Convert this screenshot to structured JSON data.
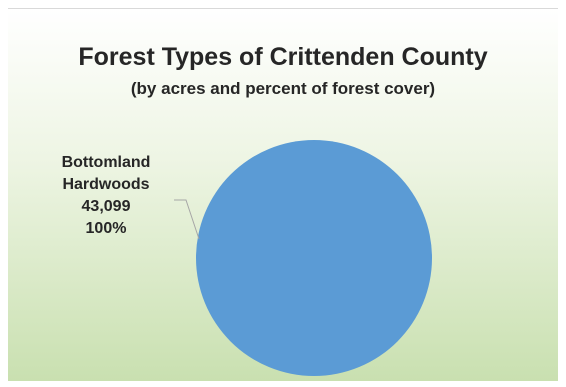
{
  "chart_data": {
    "type": "pie",
    "title": "Forest Types of Crittenden County",
    "subtitle": "(by acres and percent of forest cover)",
    "categories": [
      "Bottomland Hardwoods"
    ],
    "values": [
      43099
    ],
    "data_labels": [
      {
        "category_line1": "Bottomland",
        "category_line2": "Hardwoods",
        "value": "43,099",
        "percent": "100%"
      }
    ],
    "legend": "none",
    "colors": [
      "#5b9bd5"
    ],
    "background_gradient": [
      "#ffffff",
      "#c9e0b0"
    ],
    "leader_line_color": "#a6a6a6"
  }
}
